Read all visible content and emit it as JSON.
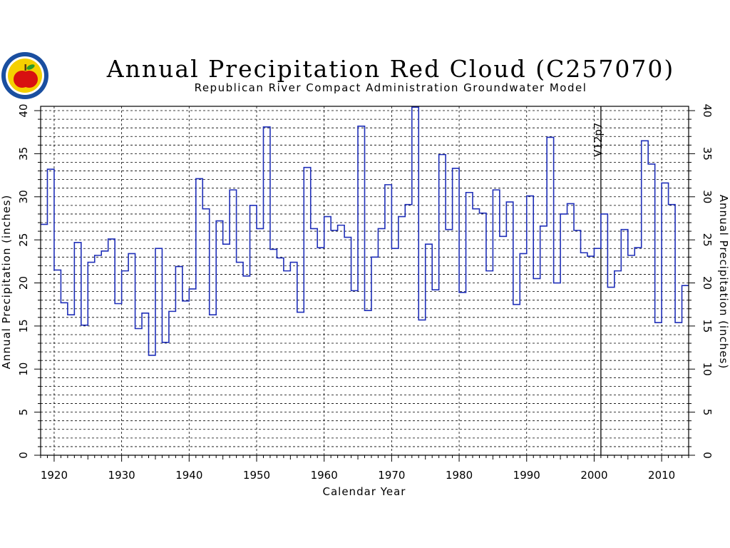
{
  "logo": {
    "icon": "apple-seal-icon",
    "ring_color": "#1a4fa0",
    "face_color": "#f5d000",
    "apple_color": "#d81010"
  },
  "chart_data": {
    "type": "line",
    "style": "step",
    "title": "Annual Precipitation Red Cloud (C257070)",
    "subtitle": "Republican River Compact Administration Groundwater Model",
    "xlabel": "Calendar Year",
    "ylabel": "Annual Precipitation (inches)",
    "xlim": [
      1918,
      2014
    ],
    "ylim": [
      0,
      40.5
    ],
    "x_ticks": [
      1920,
      1930,
      1940,
      1950,
      1960,
      1970,
      1980,
      1990,
      2000,
      2010
    ],
    "y_ticks": [
      0,
      5,
      10,
      15,
      20,
      25,
      30,
      35,
      40
    ],
    "grid": true,
    "line_color": "#1f2fb8",
    "annotation": {
      "x": 2001,
      "label": "V12p7"
    },
    "series": [
      {
        "x": [
          1918,
          1919,
          1920,
          1921,
          1922,
          1923,
          1924,
          1925,
          1926,
          1927,
          1928,
          1929,
          1930,
          1931,
          1932,
          1933,
          1934,
          1935,
          1936,
          1937,
          1938,
          1939,
          1940,
          1941,
          1942,
          1943,
          1944,
          1945,
          1946,
          1947,
          1948,
          1949,
          1950,
          1951,
          1952,
          1953,
          1954,
          1955,
          1956,
          1957,
          1958,
          1959,
          1960,
          1961,
          1962,
          1963,
          1964,
          1965,
          1966,
          1967,
          1968,
          1969,
          1970,
          1971,
          1972,
          1973,
          1974,
          1975,
          1976,
          1977,
          1978,
          1979,
          1980,
          1981,
          1982,
          1983,
          1984,
          1985,
          1986,
          1987,
          1988,
          1989,
          1990,
          1991,
          1992,
          1993,
          1994,
          1995,
          1996,
          1997,
          1998,
          1999,
          2000,
          2001,
          2002,
          2003,
          2004,
          2005,
          2006,
          2007,
          2008,
          2009,
          2010,
          2011,
          2012,
          2013
        ],
        "values": [
          26.8,
          33.2,
          21.5,
          17.7,
          16.3,
          24.7,
          15.1,
          22.4,
          23.2,
          23.7,
          25.1,
          17.6,
          21.4,
          23.4,
          14.7,
          16.5,
          11.6,
          24.0,
          13.1,
          16.7,
          21.9,
          17.9,
          19.3,
          32.1,
          28.6,
          16.3,
          27.2,
          24.5,
          30.8,
          22.4,
          20.8,
          29.0,
          26.3,
          38.1,
          23.9,
          22.9,
          21.4,
          22.4,
          16.6,
          33.4,
          26.3,
          24.1,
          27.7,
          26.1,
          26.7,
          25.3,
          19.1,
          38.2,
          16.8,
          23.0,
          26.3,
          31.4,
          24.0,
          27.7,
          29.1,
          40.4,
          15.7,
          24.5,
          19.2,
          34.9,
          26.2,
          33.3,
          18.9,
          30.5,
          28.6,
          28.1,
          21.4,
          30.8,
          25.4,
          29.4,
          17.5,
          23.4,
          30.1,
          20.5,
          26.6,
          36.9,
          20.0,
          28.0,
          29.2,
          26.1,
          23.5,
          23.1,
          24.0,
          28.0,
          19.5,
          21.4,
          26.2,
          23.2,
          24.1,
          36.5,
          33.8,
          15.4,
          31.6,
          29.1,
          15.4,
          19.7
        ]
      }
    ]
  }
}
